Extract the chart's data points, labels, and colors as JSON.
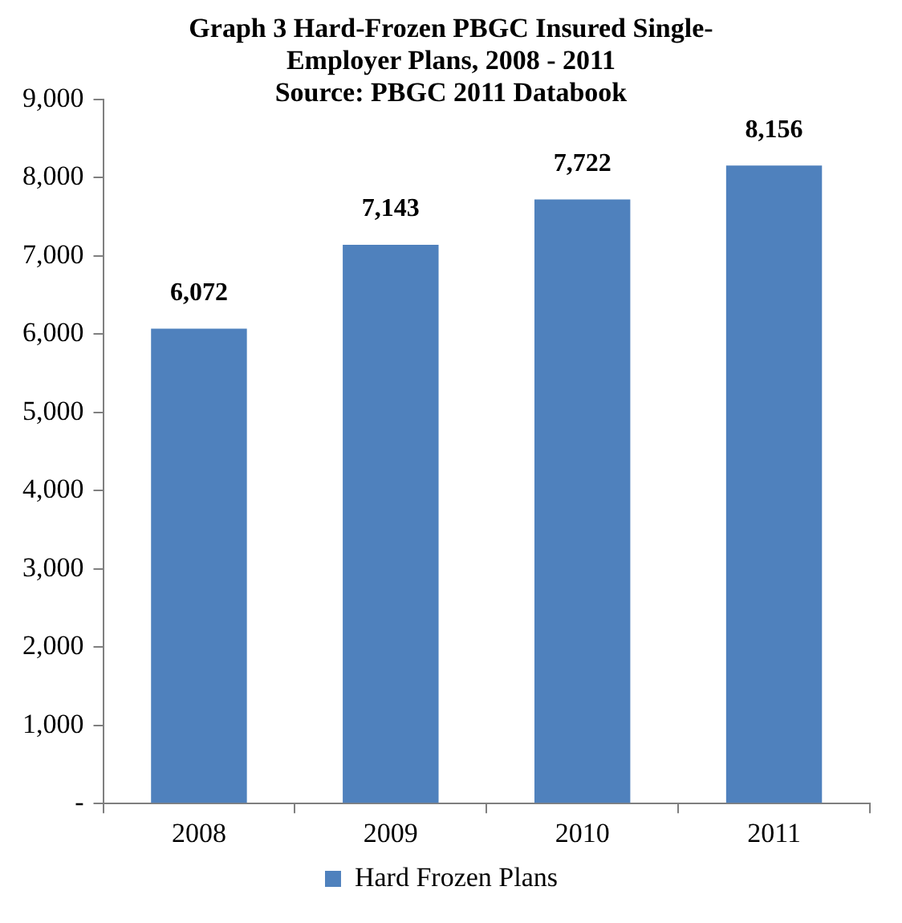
{
  "chart_data": {
    "type": "bar",
    "title": "Graph 3 Hard-Frozen PBGC Insured Single-Employer Plans, 2008 - 2011",
    "subtitle": "Source:  PBGC 2011 Databook",
    "categories": [
      "2008",
      "2009",
      "2010",
      "2011"
    ],
    "series": [
      {
        "name": "Hard Frozen Plans",
        "color": "#4f81bd",
        "values": [
          6072,
          7143,
          7722,
          8156
        ],
        "value_labels": [
          "6,072",
          "7,143",
          "7,722",
          "8,156"
        ]
      }
    ],
    "ylim": [
      0,
      9000
    ],
    "yticks": [
      {
        "value": 0,
        "label": "-"
      },
      {
        "value": 1000,
        "label": "1,000"
      },
      {
        "value": 2000,
        "label": "2,000"
      },
      {
        "value": 3000,
        "label": "3,000"
      },
      {
        "value": 4000,
        "label": "4,000"
      },
      {
        "value": 5000,
        "label": "5,000"
      },
      {
        "value": 6000,
        "label": "6,000"
      },
      {
        "value": 7000,
        "label": "7,000"
      },
      {
        "value": 8000,
        "label": "8,000"
      },
      {
        "value": 9000,
        "label": "9,000"
      }
    ],
    "legend": "bottom",
    "grid": false
  }
}
